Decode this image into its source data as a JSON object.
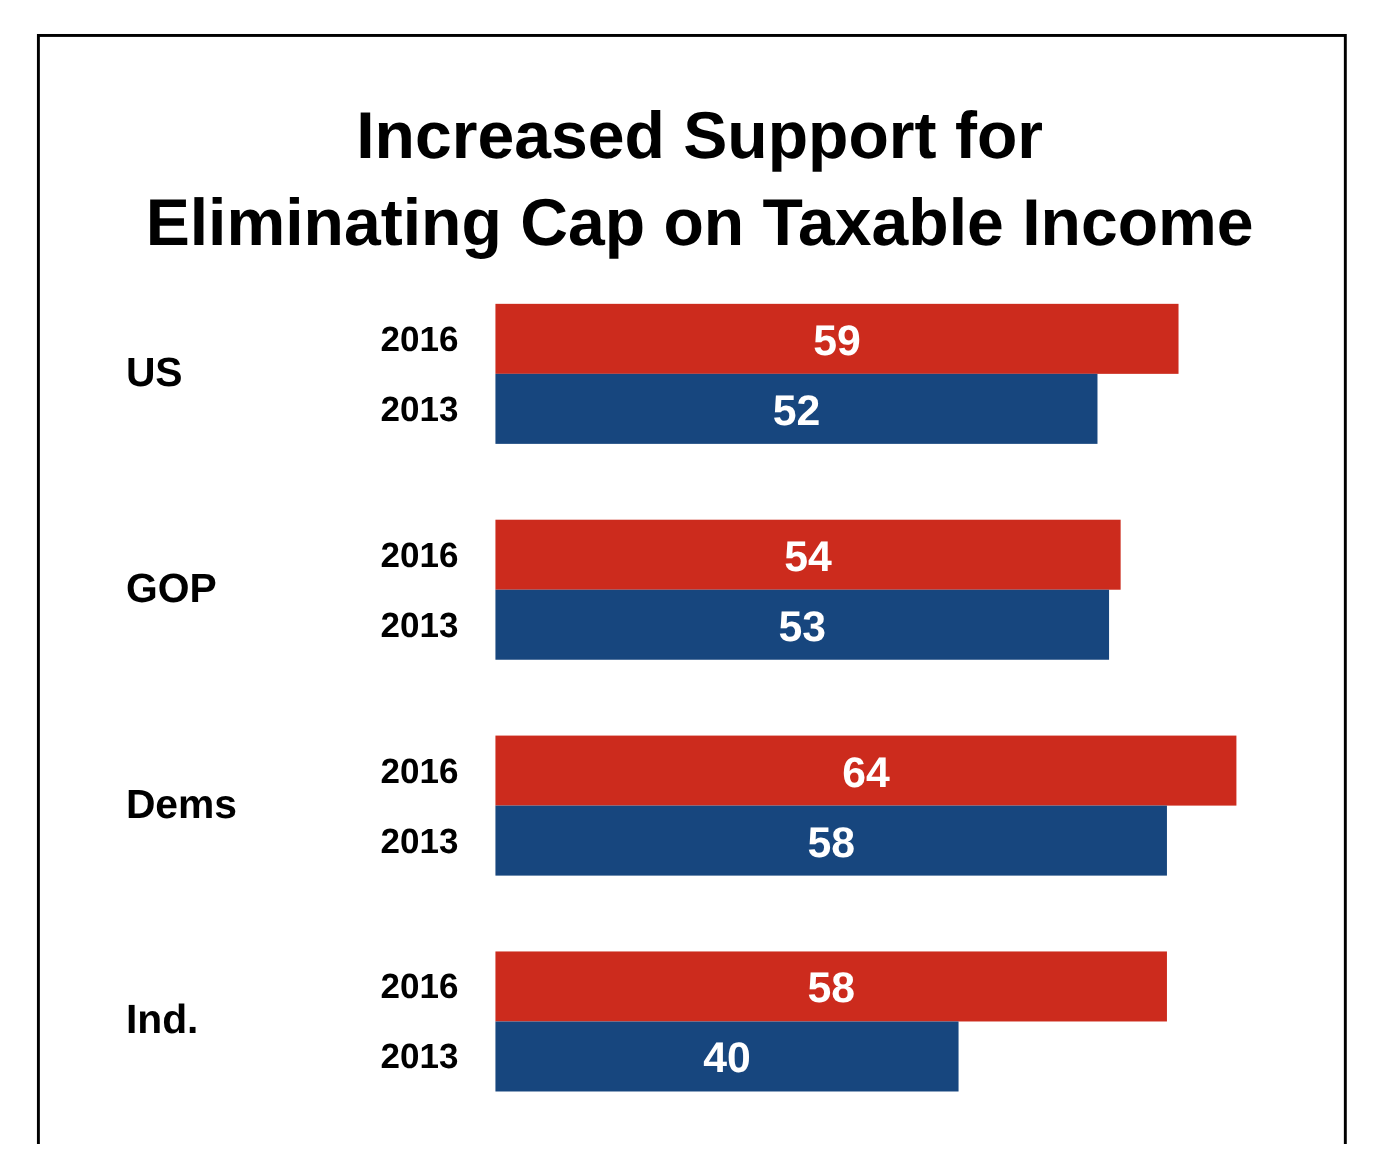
{
  "chart_data": {
    "type": "bar",
    "orientation": "horizontal",
    "title": "Increased Support for Eliminating Cap on Taxable Income",
    "categories": [
      "US",
      "GOP",
      "Dems",
      "Ind."
    ],
    "series": [
      {
        "name": "2016",
        "color": "#cc2b1d",
        "values": [
          59,
          54,
          64,
          58
        ]
      },
      {
        "name": "2013",
        "color": "#17467e",
        "values": [
          52,
          53,
          58,
          40
        ]
      }
    ],
    "data_labels": true
  }
}
